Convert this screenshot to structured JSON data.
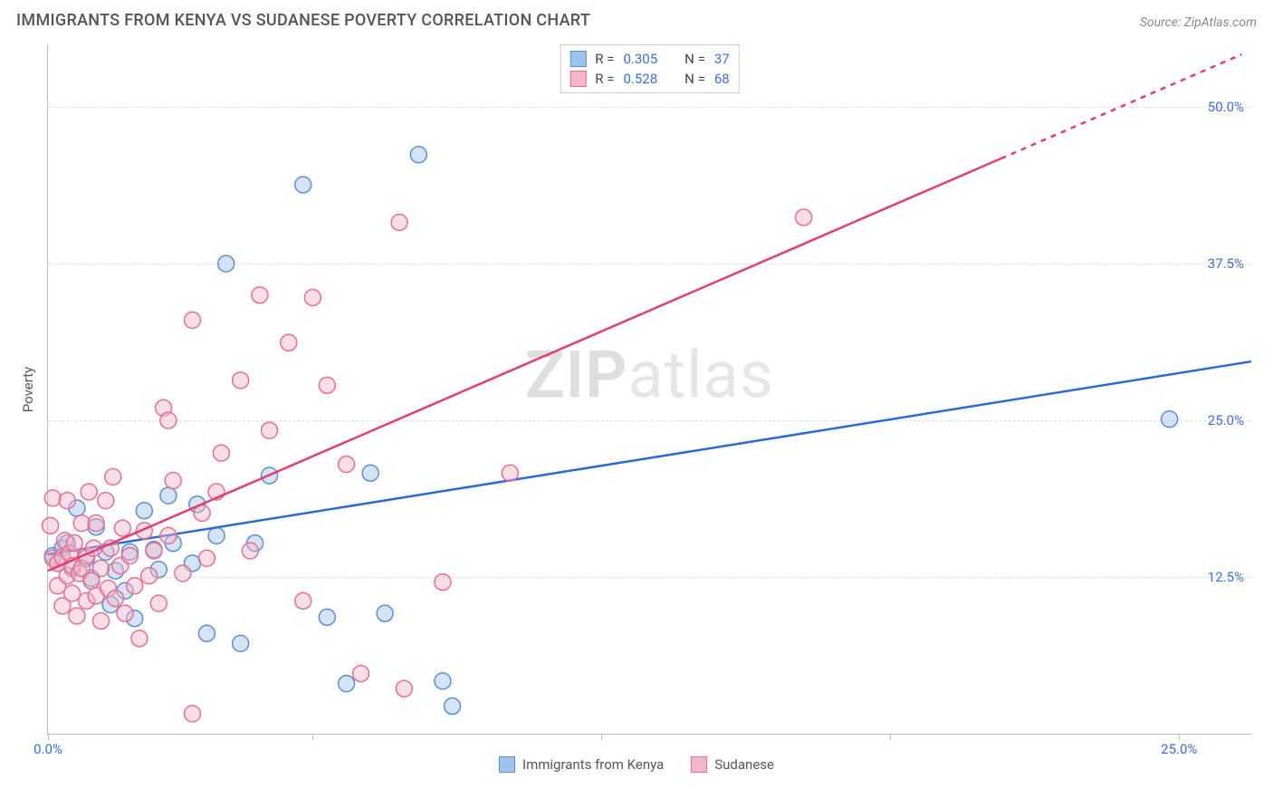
{
  "header": {
    "title": "IMMIGRANTS FROM KENYA VS SUDANESE POVERTY CORRELATION CHART",
    "source": "Source: ZipAtlas.com"
  },
  "watermark": {
    "prefix": "ZIP",
    "suffix": "atlas"
  },
  "chart": {
    "type": "scatter",
    "xlim": [
      0,
      25
    ],
    "ylim": [
      0,
      55
    ],
    "x_ticks": [
      0,
      5.5,
      11.5,
      17.5,
      23.5
    ],
    "x_tick_labels": [
      "0.0%",
      "",
      "",
      "",
      "25.0%"
    ],
    "y_ticks": [
      12.5,
      25,
      37.5,
      50
    ],
    "y_tick_labels": [
      "12.5%",
      "25.0%",
      "37.5%",
      "50.0%"
    ],
    "ylabel": "Poverty",
    "grid_color": "#dddddd",
    "axis_color": "#bbbbbb",
    "plot_bg": "#ffffff",
    "tick_label_color": "#3b6fd6",
    "marker_radius": 9,
    "line_width": 2.5,
    "series": [
      {
        "name": "Immigrants from Kenya",
        "R": "0.305",
        "N": "37",
        "color_stroke": "#5a8fd8",
        "color_fill": "#9fc1ea",
        "line_color": "#2b68d8",
        "trend": {
          "x1": 0,
          "y1": 14.3,
          "x2": 25,
          "y2": 29.7,
          "dash_from_x": 25
        },
        "points": [
          [
            0.1,
            14.2
          ],
          [
            0.2,
            13.6
          ],
          [
            0.3,
            14.8
          ],
          [
            0.4,
            15.2
          ],
          [
            0.5,
            13.2
          ],
          [
            0.6,
            18.0
          ],
          [
            0.8,
            14.0
          ],
          [
            0.9,
            12.4
          ],
          [
            1.0,
            16.5
          ],
          [
            1.2,
            14.5
          ],
          [
            1.3,
            10.3
          ],
          [
            1.4,
            13.0
          ],
          [
            1.6,
            11.4
          ],
          [
            1.7,
            14.5
          ],
          [
            1.8,
            9.2
          ],
          [
            2.0,
            17.8
          ],
          [
            2.2,
            14.7
          ],
          [
            2.3,
            13.1
          ],
          [
            2.5,
            19.0
          ],
          [
            2.6,
            15.2
          ],
          [
            3.0,
            13.6
          ],
          [
            3.1,
            18.3
          ],
          [
            3.3,
            8.0
          ],
          [
            3.5,
            15.8
          ],
          [
            3.7,
            37.5
          ],
          [
            4.0,
            7.2
          ],
          [
            4.3,
            15.2
          ],
          [
            4.6,
            20.6
          ],
          [
            5.3,
            43.8
          ],
          [
            5.8,
            9.3
          ],
          [
            6.2,
            4.0
          ],
          [
            6.7,
            20.8
          ],
          [
            7.0,
            9.6
          ],
          [
            7.7,
            46.2
          ],
          [
            8.2,
            4.2
          ],
          [
            8.4,
            2.2
          ],
          [
            23.3,
            25.1
          ]
        ]
      },
      {
        "name": "Sudanese",
        "R": "0.528",
        "N": "68",
        "color_stroke": "#e56f91",
        "color_fill": "#f4b6c8",
        "line_color": "#e23e6e",
        "trend": {
          "x1": 0,
          "y1": 13.0,
          "x2": 24.8,
          "y2": 54.2,
          "dash_from_x": 19.8
        },
        "points": [
          [
            0.05,
            16.6
          ],
          [
            0.1,
            18.8
          ],
          [
            0.1,
            14.0
          ],
          [
            0.2,
            13.6
          ],
          [
            0.2,
            11.8
          ],
          [
            0.3,
            14.1
          ],
          [
            0.3,
            10.2
          ],
          [
            0.35,
            15.4
          ],
          [
            0.4,
            18.6
          ],
          [
            0.4,
            12.6
          ],
          [
            0.45,
            14.4
          ],
          [
            0.5,
            13.4
          ],
          [
            0.5,
            11.2
          ],
          [
            0.55,
            15.2
          ],
          [
            0.6,
            9.4
          ],
          [
            0.65,
            12.8
          ],
          [
            0.7,
            16.8
          ],
          [
            0.7,
            13.2
          ],
          [
            0.8,
            10.6
          ],
          [
            0.8,
            14.2
          ],
          [
            0.85,
            19.3
          ],
          [
            0.9,
            12.2
          ],
          [
            0.95,
            14.8
          ],
          [
            1.0,
            16.8
          ],
          [
            1.0,
            11.0
          ],
          [
            1.1,
            13.2
          ],
          [
            1.1,
            9.0
          ],
          [
            1.2,
            18.6
          ],
          [
            1.25,
            11.6
          ],
          [
            1.3,
            14.8
          ],
          [
            1.35,
            20.5
          ],
          [
            1.4,
            10.8
          ],
          [
            1.5,
            13.4
          ],
          [
            1.55,
            16.4
          ],
          [
            1.6,
            9.6
          ],
          [
            1.7,
            14.2
          ],
          [
            1.8,
            11.8
          ],
          [
            1.9,
            7.6
          ],
          [
            2.0,
            16.2
          ],
          [
            2.1,
            12.6
          ],
          [
            2.2,
            14.6
          ],
          [
            2.3,
            10.4
          ],
          [
            2.4,
            26.0
          ],
          [
            2.5,
            15.8
          ],
          [
            2.5,
            25.0
          ],
          [
            2.6,
            20.2
          ],
          [
            2.8,
            12.8
          ],
          [
            3.0,
            33.0
          ],
          [
            3.2,
            17.6
          ],
          [
            3.3,
            14.0
          ],
          [
            3.5,
            19.3
          ],
          [
            3.6,
            22.4
          ],
          [
            4.0,
            28.2
          ],
          [
            4.2,
            14.6
          ],
          [
            4.4,
            35.0
          ],
          [
            4.6,
            24.2
          ],
          [
            5.0,
            31.2
          ],
          [
            5.3,
            10.6
          ],
          [
            5.5,
            34.8
          ],
          [
            5.8,
            27.8
          ],
          [
            6.2,
            21.5
          ],
          [
            6.5,
            4.8
          ],
          [
            7.3,
            40.8
          ],
          [
            7.4,
            3.6
          ],
          [
            8.2,
            12.1
          ],
          [
            9.6,
            20.8
          ],
          [
            3.0,
            1.6
          ],
          [
            15.7,
            41.2
          ]
        ]
      }
    ]
  },
  "legend_top": {
    "R_label": "R =",
    "N_label": "N ="
  },
  "legend_bottom": {
    "items": [
      "Immigrants from Kenya",
      "Sudanese"
    ]
  }
}
